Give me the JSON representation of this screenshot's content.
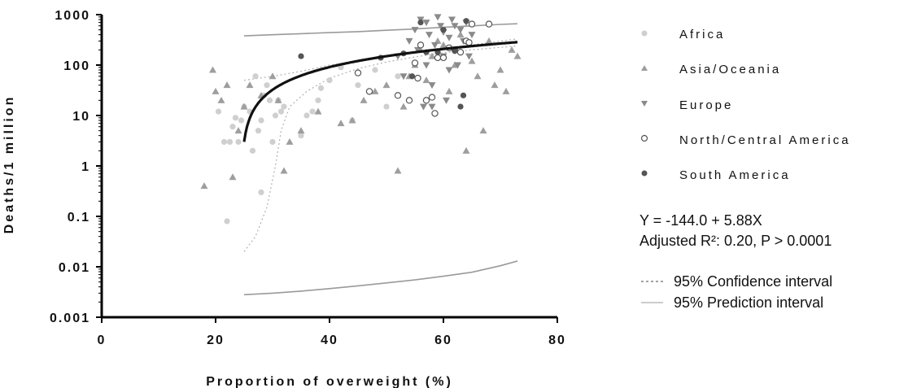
{
  "chart_data": {
    "type": "scatter",
    "xlabel": "Proportion of overweight (%)",
    "ylabel": "Deaths/1 million",
    "xlim": [
      0,
      80
    ],
    "ylim": [
      0.001,
      1000
    ],
    "yscale": "log",
    "x_ticks": [
      "0",
      "20",
      "40",
      "60",
      "80"
    ],
    "y_ticks": [
      "0.001",
      "0.01",
      "0.1",
      "1",
      "10",
      "100",
      "1000"
    ],
    "grid": false,
    "legend_position": "right",
    "series": [
      {
        "name": "Africa",
        "marker": "circle",
        "color": "#cfcfcf",
        "points": [
          [
            20.5,
            12
          ],
          [
            21.5,
            3
          ],
          [
            22,
            0.08
          ],
          [
            22.5,
            3
          ],
          [
            23,
            6
          ],
          [
            23.5,
            9
          ],
          [
            24,
            3
          ],
          [
            24.5,
            8
          ],
          [
            25,
            15
          ],
          [
            26,
            12
          ],
          [
            26.5,
            2
          ],
          [
            27,
            60
          ],
          [
            27.5,
            5
          ],
          [
            28,
            8
          ],
          [
            28,
            0.3
          ],
          [
            28.5,
            25
          ],
          [
            29,
            40
          ],
          [
            29.5,
            20
          ],
          [
            30,
            3
          ],
          [
            30.5,
            10
          ],
          [
            31,
            20
          ],
          [
            31.5,
            12
          ],
          [
            32,
            15
          ],
          [
            35,
            4
          ],
          [
            36,
            10
          ],
          [
            37,
            12
          ],
          [
            38,
            20
          ],
          [
            38.5,
            35
          ],
          [
            40,
            50
          ],
          [
            42,
            90
          ],
          [
            44,
            8
          ],
          [
            45,
            40
          ],
          [
            48,
            80
          ],
          [
            50,
            15
          ],
          [
            52,
            60
          ]
        ]
      },
      {
        "name": "Asia/Oceania",
        "marker": "triangle-up",
        "color": "#9e9e9e",
        "points": [
          [
            18,
            0.4
          ],
          [
            19.5,
            80
          ],
          [
            20,
            30
          ],
          [
            21,
            20
          ],
          [
            22,
            40
          ],
          [
            23,
            0.6
          ],
          [
            24,
            5
          ],
          [
            25,
            15
          ],
          [
            26,
            40
          ],
          [
            28,
            25
          ],
          [
            30,
            60
          ],
          [
            31,
            20
          ],
          [
            32,
            0.8
          ],
          [
            33,
            3
          ],
          [
            35,
            5
          ],
          [
            38,
            12
          ],
          [
            42,
            7
          ],
          [
            44,
            8
          ],
          [
            46,
            20
          ],
          [
            48,
            30
          ],
          [
            50,
            40
          ],
          [
            52,
            0.8
          ],
          [
            53,
            15
          ],
          [
            54,
            60
          ],
          [
            55,
            100
          ],
          [
            56,
            200
          ],
          [
            57,
            50
          ],
          [
            58,
            150
          ],
          [
            59,
            300
          ],
          [
            60,
            250
          ],
          [
            61,
            30
          ],
          [
            62,
            100
          ],
          [
            63,
            400
          ],
          [
            64,
            2
          ],
          [
            65,
            120
          ],
          [
            66,
            60
          ],
          [
            67,
            5
          ],
          [
            68,
            300
          ],
          [
            69,
            40
          ],
          [
            70,
            80
          ],
          [
            71,
            30
          ],
          [
            72,
            200
          ],
          [
            73,
            150
          ]
        ]
      },
      {
        "name": "Europe",
        "marker": "triangle-down",
        "color": "#8a8a8a",
        "points": [
          [
            52,
            150
          ],
          [
            53,
            60
          ],
          [
            54,
            300
          ],
          [
            55,
            500
          ],
          [
            55.5,
            200
          ],
          [
            56,
            800
          ],
          [
            57,
            100
          ],
          [
            57.5,
            400
          ],
          [
            58,
            40
          ],
          [
            58.5,
            250
          ],
          [
            59,
            900
          ],
          [
            59.5,
            600
          ],
          [
            60,
            150
          ],
          [
            60.5,
            20
          ],
          [
            61,
            350
          ],
          [
            61.5,
            800
          ],
          [
            62,
            200
          ],
          [
            62.5,
            100
          ],
          [
            63,
            500
          ],
          [
            63.5,
            300
          ],
          [
            64,
            700
          ],
          [
            64.5,
            150
          ],
          [
            65,
            400
          ],
          [
            56.5,
            15
          ],
          [
            58,
            15
          ],
          [
            61,
            80
          ],
          [
            62,
            600
          ],
          [
            57,
            700
          ],
          [
            60,
            450
          ]
        ]
      },
      {
        "name": "North/Central America",
        "marker": "circle-open",
        "color": "#555555",
        "points": [
          [
            45,
            70
          ],
          [
            47,
            30
          ],
          [
            52,
            25
          ],
          [
            54,
            20
          ],
          [
            55,
            110
          ],
          [
            55.5,
            55
          ],
          [
            56,
            250
          ],
          [
            57,
            20
          ],
          [
            58,
            23
          ],
          [
            58.5,
            11
          ],
          [
            59,
            140
          ],
          [
            60,
            140
          ],
          [
            61,
            220
          ],
          [
            62,
            200
          ],
          [
            63,
            180
          ],
          [
            64,
            300
          ],
          [
            64.5,
            280
          ],
          [
            65,
            650
          ],
          [
            68,
            650
          ]
        ]
      },
      {
        "name": "South America",
        "marker": "circle",
        "color": "#555555",
        "points": [
          [
            35,
            150
          ],
          [
            49,
            140
          ],
          [
            53,
            170
          ],
          [
            54.5,
            60
          ],
          [
            56,
            700
          ],
          [
            57,
            180
          ],
          [
            59,
            180
          ],
          [
            60,
            500
          ],
          [
            62,
            190
          ],
          [
            63,
            15
          ],
          [
            63.5,
            25
          ],
          [
            64,
            750
          ]
        ]
      }
    ],
    "regression": {
      "label": "Y = -144.0 + 5.88X",
      "fit_r2_label": "Adjusted R²: 0.20, P > 0.0001",
      "intercept": -144.0,
      "slope": 5.88,
      "x_range": [
        25,
        73
      ],
      "confidence_interval": {
        "label": "95% Confidence interval",
        "lower": [
          [
            25,
            0.02
          ],
          [
            27,
            0.04
          ],
          [
            29,
            0.15
          ],
          [
            30.5,
            1
          ],
          [
            31.5,
            5
          ],
          [
            33,
            15
          ],
          [
            36,
            30
          ],
          [
            40,
            55
          ],
          [
            45,
            85
          ],
          [
            50,
            115
          ],
          [
            55,
            145
          ],
          [
            60,
            175
          ],
          [
            65,
            200
          ],
          [
            70,
            225
          ],
          [
            73,
            240
          ]
        ],
        "upper": [
          [
            25,
            50
          ],
          [
            30,
            60
          ],
          [
            35,
            75
          ],
          [
            40,
            100
          ],
          [
            45,
            120
          ],
          [
            50,
            150
          ],
          [
            55,
            180
          ],
          [
            60,
            210
          ],
          [
            65,
            250
          ],
          [
            70,
            300
          ],
          [
            73,
            330
          ]
        ]
      },
      "prediction_interval": {
        "label": "95% Prediction interval",
        "lower": [
          [
            25,
            0.0028
          ],
          [
            30,
            0.003
          ],
          [
            35,
            0.0033
          ],
          [
            40,
            0.0037
          ],
          [
            45,
            0.0042
          ],
          [
            50,
            0.0048
          ],
          [
            55,
            0.0055
          ],
          [
            60,
            0.0065
          ],
          [
            65,
            0.0078
          ],
          [
            70,
            0.0105
          ],
          [
            73,
            0.013
          ]
        ],
        "upper": [
          [
            25,
            380
          ],
          [
            30,
            400
          ],
          [
            35,
            420
          ],
          [
            40,
            440
          ],
          [
            45,
            460
          ],
          [
            50,
            490
          ],
          [
            55,
            520
          ],
          [
            60,
            560
          ],
          [
            65,
            600
          ],
          [
            70,
            640
          ],
          [
            73,
            660
          ]
        ]
      }
    }
  }
}
